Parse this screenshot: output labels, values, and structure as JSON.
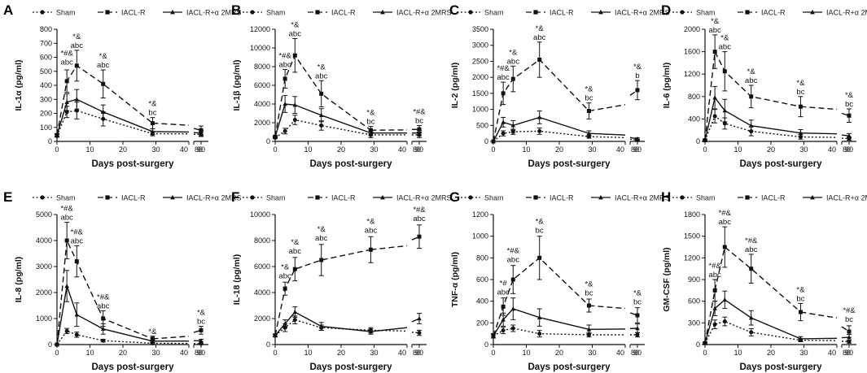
{
  "legend": {
    "labels": [
      "Sham",
      "IACL-R",
      "IACL-R+α 2MRS"
    ]
  },
  "chart_data": [
    {
      "panel": "A",
      "type": "line",
      "ylabel": "IL-1α (pg/ml)",
      "xlabel": "Days post-surgery",
      "ylim": [
        0,
        800
      ],
      "yticks": [
        0,
        100,
        200,
        300,
        400,
        500,
        600,
        700,
        800
      ],
      "x": [
        0,
        3,
        6,
        14,
        29,
        90
      ],
      "series": [
        {
          "name": "Sham",
          "values": [
            40,
            210,
            220,
            160,
            55,
            50
          ],
          "errors": [
            10,
            40,
            60,
            50,
            15,
            15
          ]
        },
        {
          "name": "IACL-R",
          "values": [
            45,
            430,
            540,
            410,
            130,
            80
          ],
          "errors": [
            10,
            80,
            110,
            100,
            40,
            30
          ]
        },
        {
          "name": "IACL-R+α 2MRS",
          "values": [
            45,
            280,
            300,
            210,
            70,
            60
          ],
          "errors": [
            10,
            60,
            70,
            50,
            20,
            20
          ]
        }
      ],
      "annotations": [
        {
          "x": 3,
          "y": 530,
          "lines": [
            "*#&",
            "abc"
          ]
        },
        {
          "x": 6,
          "y": 650,
          "lines": [
            "*&",
            "abc"
          ]
        },
        {
          "x": 14,
          "y": 510,
          "lines": [
            "*&",
            "abc"
          ]
        },
        {
          "x": 29,
          "y": 170,
          "lines": [
            "*&",
            "bc"
          ]
        }
      ]
    },
    {
      "panel": "B",
      "type": "line",
      "ylabel": "IL-1β (pg/ml)",
      "xlabel": "Days post-surgery",
      "ylim": [
        0,
        12000
      ],
      "yticks": [
        0,
        2000,
        4000,
        6000,
        8000,
        10000,
        12000
      ],
      "x": [
        0,
        3,
        6,
        14,
        29,
        90
      ],
      "series": [
        {
          "name": "Sham",
          "values": [
            400,
            1100,
            2300,
            1700,
            700,
            700
          ],
          "errors": [
            100,
            300,
            500,
            500,
            300,
            300
          ]
        },
        {
          "name": "IACL-R",
          "values": [
            500,
            6700,
            9200,
            5100,
            1200,
            1300
          ],
          "errors": [
            100,
            1000,
            1800,
            1400,
            400,
            400
          ]
        },
        {
          "name": "IACL-R+α 2MRS",
          "values": [
            500,
            4000,
            3900,
            2800,
            900,
            900
          ],
          "errors": [
            100,
            900,
            900,
            700,
            300,
            300
          ]
        }
      ],
      "annotations": [
        {
          "x": 3,
          "y": 7700,
          "lines": [
            "*#&",
            "abc"
          ]
        },
        {
          "x": 6,
          "y": 11000,
          "lines": [
            "*&",
            "abc"
          ]
        },
        {
          "x": 14,
          "y": 6500,
          "lines": [
            "*&",
            "abc"
          ]
        },
        {
          "x": 29,
          "y": 1600,
          "lines": [
            "*&",
            "bc"
          ]
        },
        {
          "x": 90,
          "y": 1700,
          "lines": [
            "*#&",
            "bc"
          ]
        }
      ]
    },
    {
      "panel": "C",
      "type": "line",
      "ylabel": "IL-2 (pg/ml)",
      "xlabel": "Days post-surgery",
      "ylim": [
        0,
        3500
      ],
      "yticks": [
        0,
        500,
        1000,
        1500,
        2000,
        2500,
        3000,
        3500
      ],
      "x": [
        0,
        3,
        6,
        14,
        29,
        90
      ],
      "series": [
        {
          "name": "Sham",
          "values": [
            0,
            250,
            300,
            320,
            150,
            40
          ],
          "errors": [
            0,
            80,
            80,
            100,
            50,
            20
          ]
        },
        {
          "name": "IACL-R",
          "values": [
            0,
            1500,
            1950,
            2550,
            950,
            1600
          ],
          "errors": [
            0,
            350,
            400,
            550,
            250,
            300
          ]
        },
        {
          "name": "IACL-R+α 2MRS",
          "values": [
            0,
            600,
            500,
            750,
            250,
            80
          ],
          "errors": [
            0,
            150,
            150,
            200,
            80,
            30
          ]
        }
      ],
      "annotations": [
        {
          "x": 3,
          "y": 1850,
          "lines": [
            "*#&",
            "abc"
          ]
        },
        {
          "x": 6,
          "y": 2350,
          "lines": [
            "*&",
            "abc"
          ]
        },
        {
          "x": 14,
          "y": 3100,
          "lines": [
            "*&",
            "abc"
          ]
        },
        {
          "x": 29,
          "y": 1200,
          "lines": [
            "*&",
            "bc"
          ]
        },
        {
          "x": 90,
          "y": 1900,
          "lines": [
            "*&",
            "b"
          ]
        }
      ]
    },
    {
      "panel": "D",
      "type": "line",
      "ylabel": "IL-6 (pg/ml)",
      "xlabel": "Days post-surgery",
      "ylim": [
        0,
        2000
      ],
      "yticks": [
        0,
        400,
        800,
        1200,
        1600,
        2000
      ],
      "x": [
        0,
        3,
        6,
        14,
        29,
        90
      ],
      "series": [
        {
          "name": "Sham",
          "values": [
            20,
            450,
            320,
            180,
            80,
            50
          ],
          "errors": [
            10,
            120,
            100,
            80,
            40,
            30
          ]
        },
        {
          "name": "IACL-R",
          "values": [
            20,
            1600,
            1250,
            800,
            620,
            460
          ],
          "errors": [
            10,
            300,
            350,
            200,
            180,
            120
          ]
        },
        {
          "name": "IACL-R+α 2MRS",
          "values": [
            20,
            780,
            550,
            280,
            150,
            100
          ],
          "errors": [
            10,
            200,
            200,
            100,
            60,
            40
          ]
        }
      ],
      "annotations": [
        {
          "x": 3,
          "y": 1900,
          "lines": [
            "*&",
            "abc"
          ]
        },
        {
          "x": 6,
          "y": 1600,
          "lines": [
            "*&",
            "abc"
          ]
        },
        {
          "x": 14,
          "y": 1000,
          "lines": [
            "*&",
            "abc"
          ]
        },
        {
          "x": 29,
          "y": 800,
          "lines": [
            "*&",
            "bc"
          ]
        },
        {
          "x": 90,
          "y": 580,
          "lines": [
            "*&",
            "bc"
          ]
        }
      ]
    },
    {
      "panel": "E",
      "type": "line",
      "ylabel": "IL-8 (pg/ml)",
      "xlabel": "Days post-surgery",
      "ylim": [
        0,
        5000
      ],
      "yticks": [
        0,
        1000,
        2000,
        3000,
        4000,
        5000
      ],
      "x": [
        0,
        3,
        6,
        14,
        29,
        90
      ],
      "series": [
        {
          "name": "Sham",
          "values": [
            0,
            520,
            380,
            150,
            50,
            30
          ],
          "errors": [
            0,
            100,
            100,
            50,
            20,
            20
          ]
        },
        {
          "name": "IACL-R",
          "values": [
            0,
            4000,
            3200,
            1000,
            220,
            550
          ],
          "errors": [
            0,
            700,
            600,
            300,
            100,
            150
          ]
        },
        {
          "name": "IACL-R+α 2MRS",
          "values": [
            0,
            2250,
            1150,
            600,
            130,
            150
          ],
          "errors": [
            0,
            600,
            450,
            200,
            50,
            50
          ]
        }
      ],
      "annotations": [
        {
          "x": 3,
          "y": 4700,
          "lines": [
            "*#&",
            "abc"
          ]
        },
        {
          "x": 6,
          "y": 3800,
          "lines": [
            "*#&",
            "abc"
          ]
        },
        {
          "x": 14,
          "y": 1300,
          "lines": [
            "*#&",
            "abc"
          ]
        },
        {
          "x": 29,
          "y": 320,
          "lines": [
            "*&"
          ]
        },
        {
          "x": 90,
          "y": 700,
          "lines": [
            "*&",
            "bc"
          ]
        }
      ]
    },
    {
      "panel": "F",
      "type": "line",
      "ylabel": "IL-18 (pg/ml)",
      "xlabel": "Days post-surgery",
      "ylim": [
        0,
        10000
      ],
      "yticks": [
        0,
        2000,
        4000,
        6000,
        8000,
        10000
      ],
      "x": [
        0,
        3,
        6,
        14,
        29,
        90
      ],
      "series": [
        {
          "name": "Sham",
          "values": [
            700,
            1300,
            1900,
            1300,
            1100,
            900
          ],
          "errors": [
            100,
            300,
            300,
            200,
            200,
            200
          ]
        },
        {
          "name": "IACL-R",
          "values": [
            700,
            4300,
            5800,
            6500,
            7300,
            8300
          ],
          "errors": [
            100,
            500,
            900,
            1200,
            1000,
            900
          ]
        },
        {
          "name": "IACL-R+α 2MRS",
          "values": [
            700,
            1600,
            2500,
            1400,
            1000,
            2000
          ],
          "errors": [
            100,
            300,
            400,
            300,
            200,
            400
          ]
        }
      ],
      "annotations": [
        {
          "x": 3,
          "y": 4900,
          "lines": [
            "*&",
            "abc"
          ]
        },
        {
          "x": 6,
          "y": 6800,
          "lines": [
            "*&",
            "abc"
          ]
        },
        {
          "x": 14,
          "y": 7800,
          "lines": [
            "*&",
            "abc"
          ]
        },
        {
          "x": 29,
          "y": 8400,
          "lines": [
            "*&",
            "abc"
          ]
        },
        {
          "x": 90,
          "y": 9300,
          "lines": [
            "*#&",
            "abc"
          ]
        }
      ]
    },
    {
      "panel": "G",
      "type": "line",
      "ylabel": "TNF-α (pg/ml)",
      "xlabel": "Days post-surgery",
      "ylim": [
        0,
        1200
      ],
      "yticks": [
        0,
        200,
        400,
        600,
        800,
        1000,
        1200
      ],
      "x": [
        0,
        3,
        6,
        14,
        29,
        90
      ],
      "series": [
        {
          "name": "Sham",
          "values": [
            80,
            130,
            150,
            100,
            90,
            90
          ],
          "errors": [
            20,
            30,
            30,
            30,
            20,
            20
          ]
        },
        {
          "name": "IACL-R",
          "values": [
            80,
            350,
            600,
            800,
            360,
            270
          ],
          "errors": [
            20,
            80,
            130,
            200,
            60,
            70
          ]
        },
        {
          "name": "IACL-R+α 2MRS",
          "values": [
            80,
            230,
            330,
            250,
            140,
            150
          ],
          "errors": [
            20,
            60,
            100,
            80,
            40,
            40
          ]
        }
      ],
      "annotations": [
        {
          "x": 3,
          "y": 440,
          "lines": [
            "*#",
            "abc"
          ]
        },
        {
          "x": 6,
          "y": 740,
          "lines": [
            "*#&",
            "abc"
          ]
        },
        {
          "x": 14,
          "y": 1010,
          "lines": [
            "*&",
            "bc"
          ]
        },
        {
          "x": 29,
          "y": 430,
          "lines": [
            "*&",
            "bc"
          ]
        },
        {
          "x": 90,
          "y": 350,
          "lines": [
            "*&",
            "bc"
          ]
        }
      ]
    },
    {
      "panel": "H",
      "type": "line",
      "ylabel": "GM-CSF (pg/ml)",
      "xlabel": "Days post-surgery",
      "ylim": [
        0,
        1800
      ],
      "yticks": [
        0,
        300,
        600,
        900,
        1200,
        1500,
        1800
      ],
      "x": [
        0,
        3,
        6,
        14,
        29,
        90
      ],
      "series": [
        {
          "name": "Sham",
          "values": [
            20,
            280,
            320,
            170,
            60,
            40
          ],
          "errors": [
            10,
            60,
            60,
            50,
            20,
            20
          ]
        },
        {
          "name": "IACL-R",
          "values": [
            20,
            750,
            1350,
            1050,
            450,
            180
          ],
          "errors": [
            10,
            150,
            280,
            200,
            120,
            80
          ]
        },
        {
          "name": "IACL-R+α 2MRS",
          "values": [
            20,
            500,
            620,
            370,
            80,
            100
          ],
          "errors": [
            10,
            100,
            120,
            100,
            30,
            40
          ]
        }
      ],
      "annotations": [
        {
          "x": 3,
          "y": 900,
          "lines": [
            "*#&",
            "abc"
          ]
        },
        {
          "x": 6,
          "y": 1630,
          "lines": [
            "*#&",
            "abc"
          ]
        },
        {
          "x": 14,
          "y": 1250,
          "lines": [
            "*#&",
            "abc"
          ]
        },
        {
          "x": 29,
          "y": 570,
          "lines": [
            "*&",
            "bc"
          ]
        },
        {
          "x": 90,
          "y": 280,
          "lines": [
            "*#&",
            "bc"
          ]
        }
      ]
    }
  ],
  "axis_break_labels": {
    "left": "40",
    "right": "80"
  },
  "x_ticks_low": [
    0,
    10,
    20,
    30
  ],
  "x_ticks_high": [
    90
  ]
}
